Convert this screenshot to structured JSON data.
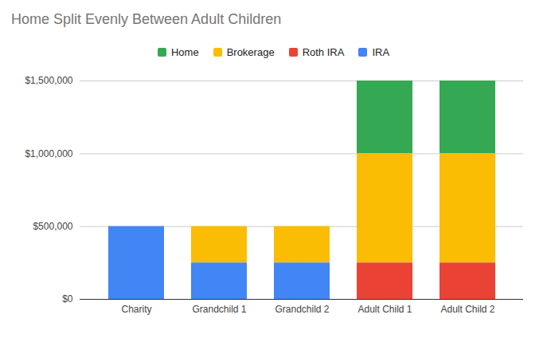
{
  "chart_data": {
    "type": "bar",
    "title": "Home Split Evenly Between Adult Children",
    "categories": [
      "Charity",
      "Grandchild 1",
      "Grandchild 2",
      "Adult Child 1",
      "Adult Child 2"
    ],
    "series": [
      {
        "name": "Home",
        "color": "#34a853",
        "values": [
          0,
          0,
          0,
          500000,
          500000
        ]
      },
      {
        "name": "Brokerage",
        "color": "#fbbc04",
        "values": [
          0,
          250000,
          250000,
          750000,
          750000
        ]
      },
      {
        "name": "Roth IRA",
        "color": "#ea4335",
        "values": [
          0,
          0,
          0,
          250000,
          250000
        ]
      },
      {
        "name": "IRA",
        "color": "#4285f4",
        "values": [
          500000,
          250000,
          250000,
          0,
          0
        ]
      }
    ],
    "stacked": true,
    "ylim": [
      0,
      1500000
    ],
    "yticks": [
      {
        "value": 0,
        "label": "$0"
      },
      {
        "value": 500000,
        "label": "$500,000"
      },
      {
        "value": 1000000,
        "label": "$1,000,000"
      },
      {
        "value": 1500000,
        "label": "$1,500,000"
      }
    ],
    "grid": true,
    "legend": "top"
  }
}
